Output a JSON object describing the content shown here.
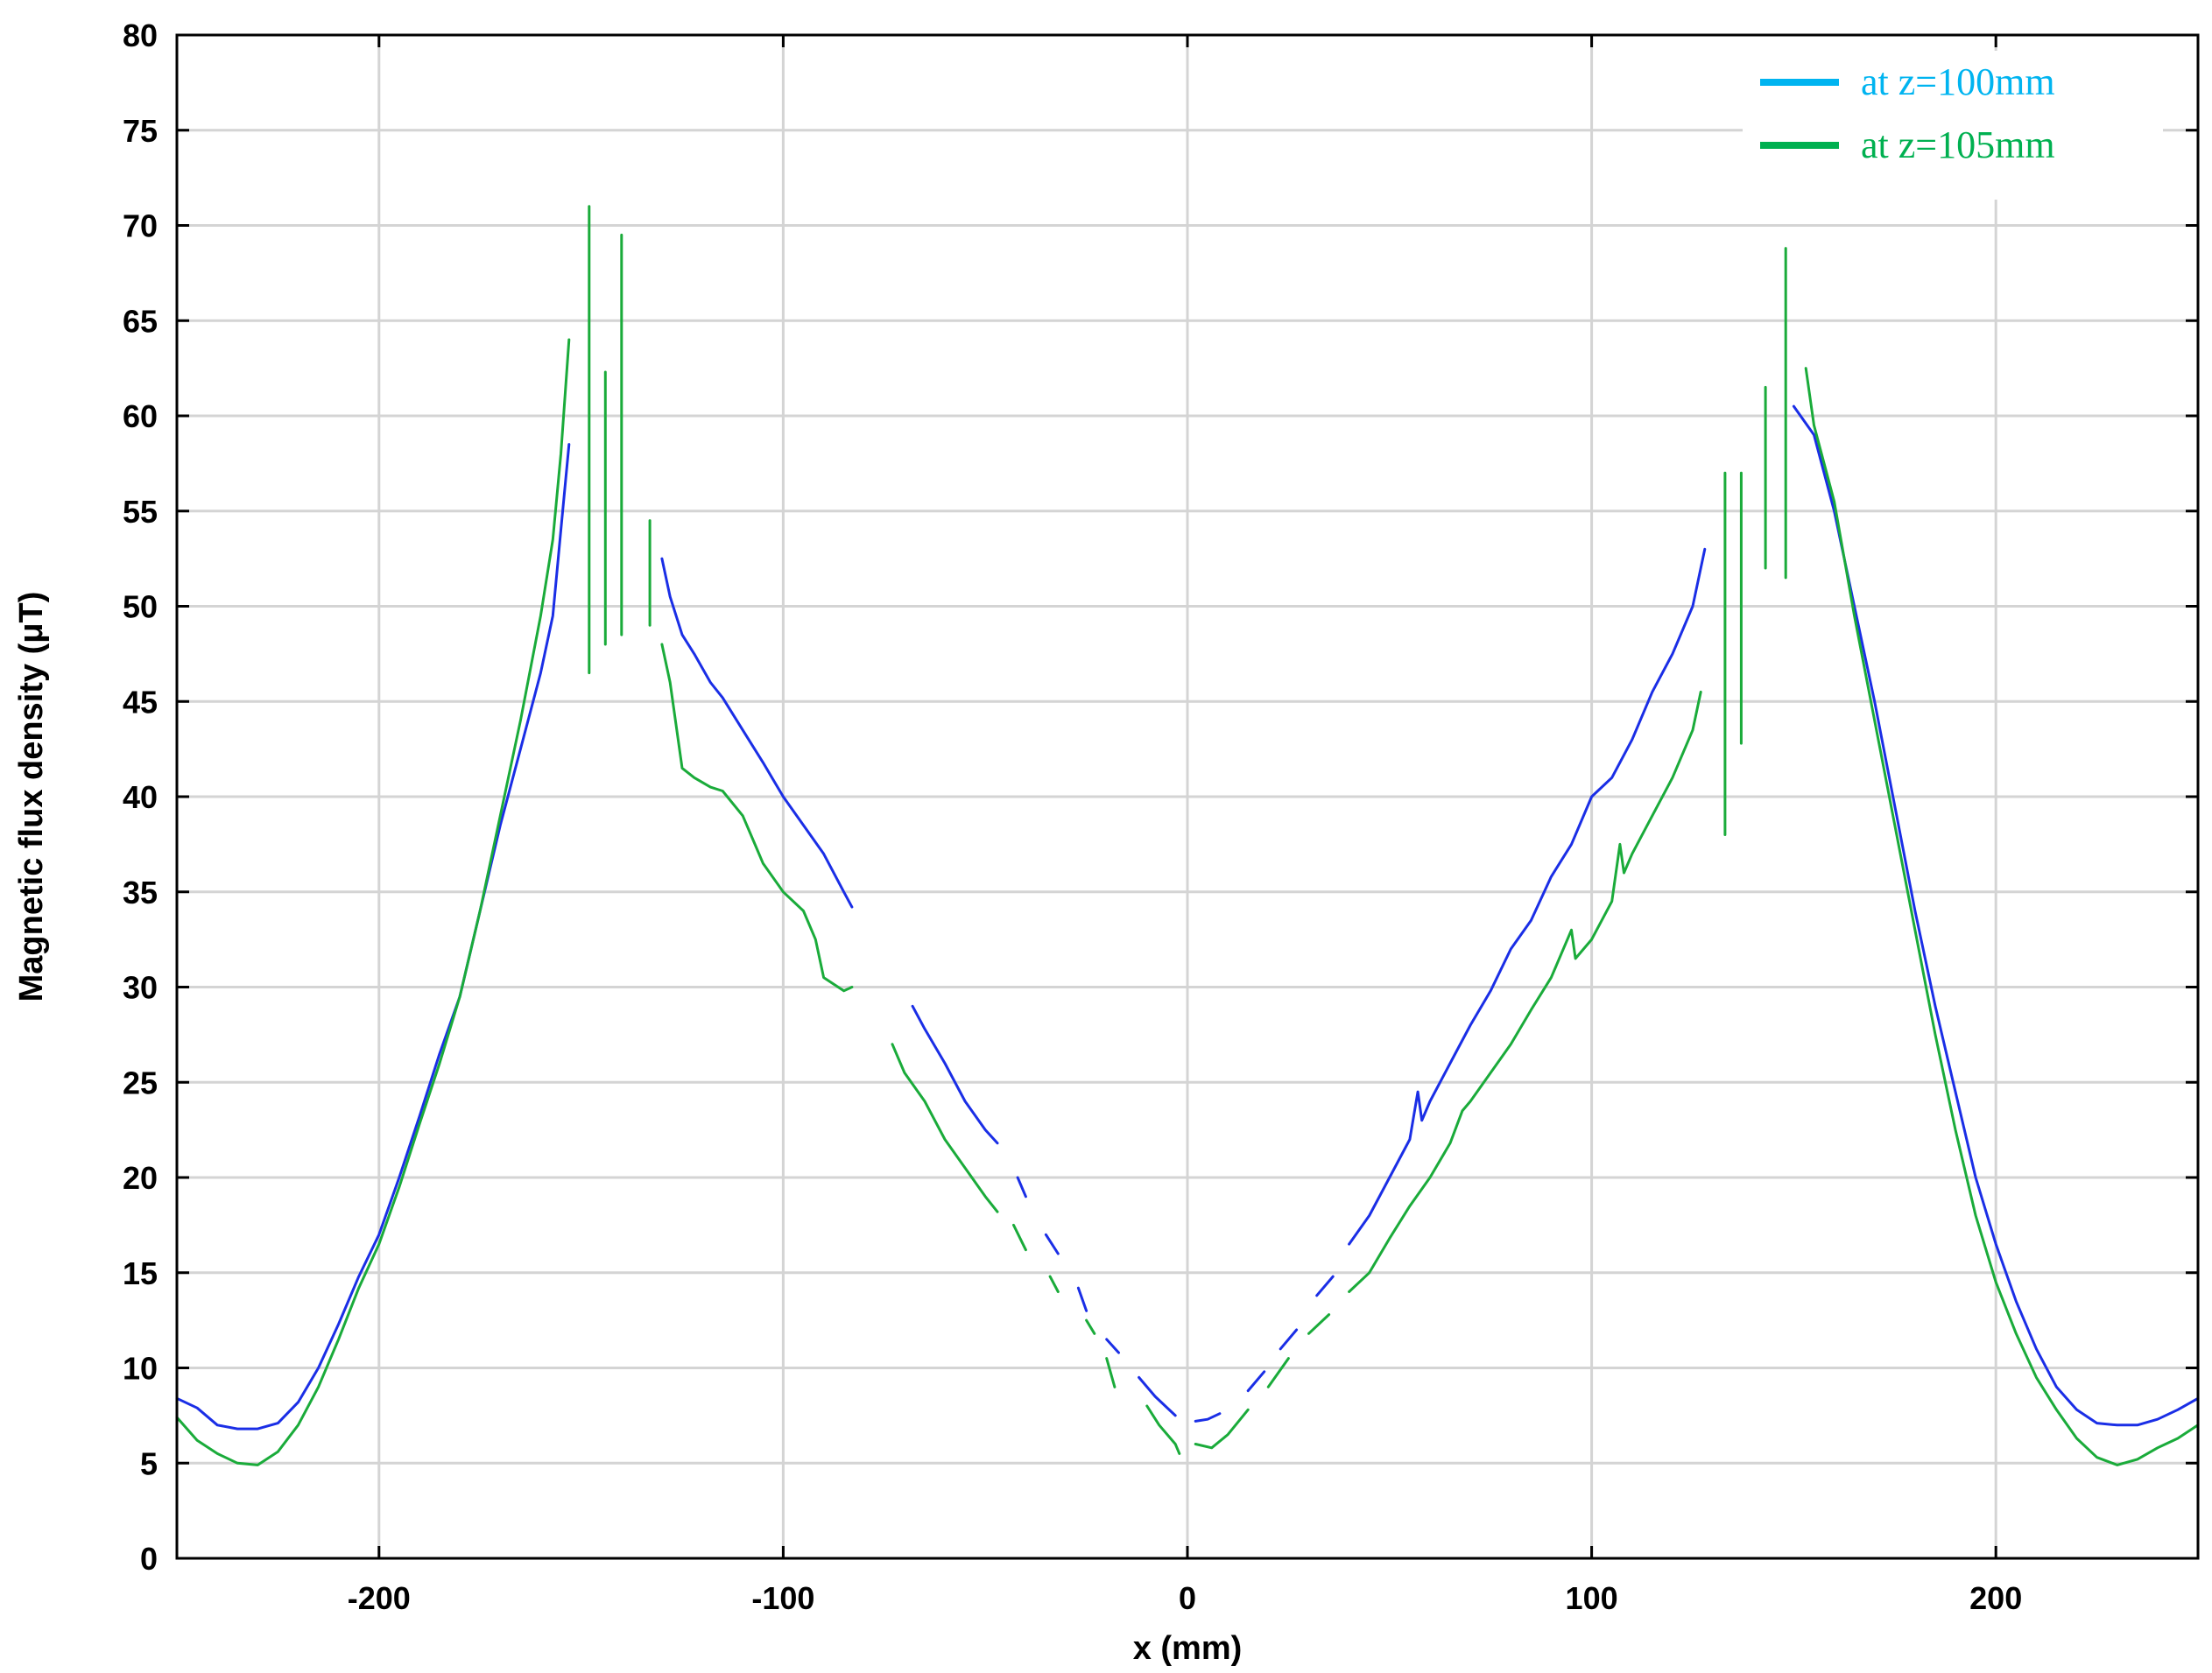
{
  "chart_data": {
    "type": "line",
    "title": "",
    "xlabel": "x (mm)",
    "ylabel": "Magnetic flux density (μT)",
    "xlim": [
      -250,
      250
    ],
    "ylim": [
      0,
      80
    ],
    "xticks": [
      -200,
      -100,
      0,
      100,
      200
    ],
    "yticks": [
      0,
      5,
      10,
      15,
      20,
      25,
      30,
      35,
      40,
      45,
      50,
      55,
      60,
      65,
      70,
      75,
      80
    ],
    "grid": true,
    "legend_position": "top-right",
    "series": [
      {
        "name": "at z=100mm",
        "color": "#1a2ee6",
        "legend_color": "#00b4f0",
        "points": [
          [
            -250,
            8.4
          ],
          [
            -245,
            7.9
          ],
          [
            -240,
            7.0
          ],
          [
            -235,
            6.8
          ],
          [
            -230,
            6.8
          ],
          [
            -225,
            7.1
          ],
          [
            -220,
            8.2
          ],
          [
            -215,
            10.0
          ],
          [
            -210,
            12.3
          ],
          [
            -205,
            14.8
          ],
          [
            -200,
            17.0
          ],
          [
            -195,
            20.0
          ],
          [
            -190,
            23.2
          ],
          [
            -185,
            26.5
          ],
          [
            -180,
            29.5
          ],
          [
            -175,
            34.0
          ],
          [
            -170,
            38.5
          ],
          [
            -165,
            42.5
          ],
          [
            -160,
            46.5
          ],
          [
            -157,
            49.5
          ],
          [
            -155,
            54.0
          ],
          [
            -153,
            58.5
          ],
          null,
          [
            -130,
            52.5
          ],
          [
            -128,
            50.5
          ],
          [
            -125,
            48.5
          ],
          [
            -122,
            47.5
          ],
          [
            -118,
            46.0
          ],
          [
            -115,
            45.2
          ],
          [
            -110,
            43.5
          ],
          [
            -105,
            41.8
          ],
          [
            -100,
            40.0
          ],
          [
            -95,
            38.5
          ],
          [
            -90,
            37.0
          ],
          [
            -85,
            35.0
          ],
          [
            -83,
            34.2
          ],
          null,
          [
            -68,
            29.0
          ],
          [
            -65,
            27.8
          ],
          [
            -60,
            26.0
          ],
          [
            -55,
            24.0
          ],
          [
            -50,
            22.5
          ],
          [
            -47,
            21.8
          ],
          null,
          [
            -42,
            20.0
          ],
          [
            -40,
            19.0
          ],
          null,
          [
            -35,
            17.0
          ],
          [
            -32,
            16.0
          ],
          null,
          [
            -27,
            14.2
          ],
          [
            -25,
            13.0
          ],
          null,
          [
            -20,
            11.5
          ],
          [
            -17,
            10.8
          ],
          null,
          [
            -12,
            9.5
          ],
          [
            -8,
            8.5
          ],
          [
            -3,
            7.5
          ],
          null,
          [
            2,
            7.2
          ],
          [
            5,
            7.3
          ],
          [
            8,
            7.6
          ],
          null,
          [
            15,
            8.8
          ],
          [
            19,
            9.8
          ],
          null,
          [
            23,
            11.0
          ],
          [
            27,
            12.0
          ],
          null,
          [
            32,
            13.8
          ],
          [
            36,
            14.8
          ],
          null,
          [
            40,
            16.5
          ],
          [
            45,
            18.0
          ],
          [
            50,
            20.0
          ],
          [
            55,
            22.0
          ],
          [
            57,
            24.5
          ],
          [
            58,
            23.0
          ],
          [
            60,
            24.0
          ],
          [
            65,
            26.0
          ],
          [
            70,
            28.0
          ],
          [
            75,
            29.8
          ],
          [
            80,
            32.0
          ],
          [
            85,
            33.5
          ],
          [
            90,
            35.8
          ],
          [
            95,
            37.5
          ],
          [
            100,
            40.0
          ],
          [
            105,
            41.0
          ],
          [
            110,
            43.0
          ],
          [
            115,
            45.5
          ],
          [
            120,
            47.5
          ],
          [
            125,
            50.0
          ],
          [
            128,
            53.0
          ],
          null,
          [
            150,
            60.5
          ],
          [
            155,
            59.0
          ],
          [
            160,
            55.0
          ],
          [
            165,
            50.0
          ],
          [
            170,
            45.0
          ],
          [
            175,
            39.5
          ],
          [
            180,
            34.0
          ],
          [
            185,
            29.0
          ],
          [
            190,
            24.5
          ],
          [
            195,
            20.0
          ],
          [
            200,
            16.5
          ],
          [
            205,
            13.5
          ],
          [
            210,
            11.0
          ],
          [
            215,
            9.0
          ],
          [
            220,
            7.8
          ],
          [
            225,
            7.1
          ],
          [
            230,
            7.0
          ],
          [
            235,
            7.0
          ],
          [
            240,
            7.3
          ],
          [
            245,
            7.8
          ],
          [
            250,
            8.4
          ]
        ]
      },
      {
        "name": "at z=105mm",
        "color": "#1aab3a",
        "legend_color": "#00b050",
        "points": [
          [
            -250,
            7.4
          ],
          [
            -245,
            6.2
          ],
          [
            -240,
            5.5
          ],
          [
            -235,
            5.0
          ],
          [
            -230,
            4.9
          ],
          [
            -225,
            5.6
          ],
          [
            -220,
            7.0
          ],
          [
            -215,
            9.0
          ],
          [
            -210,
            11.5
          ],
          [
            -205,
            14.2
          ],
          [
            -200,
            16.5
          ],
          [
            -195,
            19.5
          ],
          [
            -190,
            22.8
          ],
          [
            -185,
            26.0
          ],
          [
            -180,
            29.5
          ],
          [
            -175,
            34.0
          ],
          [
            -170,
            39.0
          ],
          [
            -165,
            44.0
          ],
          [
            -160,
            49.5
          ],
          [
            -157,
            53.5
          ],
          [
            -155,
            58.0
          ],
          [
            -153,
            64.0
          ],
          null,
          [
            -148,
            46.5
          ],
          [
            -148,
            71.0
          ],
          null,
          [
            -144,
            48.0
          ],
          [
            -144,
            62.3
          ],
          null,
          [
            -140,
            48.5
          ],
          [
            -140,
            69.5
          ],
          null,
          [
            -133,
            49.0
          ],
          [
            -133,
            54.5
          ],
          null,
          [
            -130,
            48.0
          ],
          [
            -128,
            46.0
          ],
          [
            -125,
            41.5
          ],
          [
            -122,
            41.0
          ],
          [
            -118,
            40.5
          ],
          [
            -115,
            40.3
          ],
          [
            -110,
            39.0
          ],
          [
            -107,
            37.5
          ],
          [
            -105,
            36.5
          ],
          [
            -100,
            35.0
          ],
          [
            -95,
            34.0
          ],
          [
            -92,
            32.5
          ],
          [
            -90,
            30.5
          ],
          [
            -85,
            29.8
          ],
          [
            -83,
            30.0
          ],
          null,
          [
            -73,
            27.0
          ],
          [
            -70,
            25.5
          ],
          [
            -65,
            24.0
          ],
          [
            -60,
            22.0
          ],
          [
            -55,
            20.5
          ],
          [
            -50,
            19.0
          ],
          [
            -47,
            18.2
          ],
          null,
          [
            -43,
            17.5
          ],
          [
            -40,
            16.2
          ],
          null,
          [
            -34,
            14.8
          ],
          [
            -32,
            14.0
          ],
          null,
          [
            -25,
            12.5
          ],
          [
            -23,
            11.8
          ],
          null,
          [
            -20,
            10.5
          ],
          [
            -18,
            9.0
          ],
          null,
          [
            -10,
            8.0
          ],
          [
            -7,
            7.0
          ],
          [
            -3,
            6.0
          ],
          [
            -2,
            5.5
          ],
          null,
          [
            2,
            6.0
          ],
          [
            6,
            5.8
          ],
          [
            10,
            6.5
          ],
          [
            15,
            7.8
          ],
          null,
          [
            20,
            9.0
          ],
          [
            25,
            10.5
          ],
          null,
          [
            30,
            11.8
          ],
          [
            35,
            12.8
          ],
          null,
          [
            40,
            14.0
          ],
          [
            45,
            15.0
          ],
          [
            50,
            16.8
          ],
          [
            55,
            18.5
          ],
          [
            60,
            20.0
          ],
          [
            65,
            21.8
          ],
          [
            68,
            23.5
          ],
          [
            70,
            24.0
          ],
          [
            75,
            25.5
          ],
          [
            80,
            27.0
          ],
          [
            85,
            28.8
          ],
          [
            90,
            30.5
          ],
          [
            95,
            33.0
          ],
          [
            96,
            31.5
          ],
          [
            100,
            32.5
          ],
          [
            105,
            34.5
          ],
          [
            107,
            37.5
          ],
          [
            108,
            36.0
          ],
          [
            110,
            37.0
          ],
          [
            115,
            39.0
          ],
          [
            120,
            41.0
          ],
          [
            125,
            43.5
          ],
          [
            127,
            45.5
          ],
          null,
          [
            133,
            38.0
          ],
          [
            133,
            57.0
          ],
          null,
          [
            137,
            42.8
          ],
          [
            137,
            57.0
          ],
          null,
          [
            143,
            52.0
          ],
          [
            143,
            61.5
          ],
          null,
          [
            148,
            51.5
          ],
          [
            148,
            68.8
          ],
          null,
          [
            153,
            62.5
          ],
          [
            155,
            59.5
          ],
          [
            160,
            55.5
          ],
          [
            165,
            49.5
          ],
          [
            170,
            44.0
          ],
          [
            175,
            38.5
          ],
          [
            180,
            33.0
          ],
          [
            185,
            27.5
          ],
          [
            190,
            22.5
          ],
          [
            195,
            18.0
          ],
          [
            200,
            14.5
          ],
          [
            205,
            11.8
          ],
          [
            210,
            9.5
          ],
          [
            215,
            7.8
          ],
          [
            220,
            6.3
          ],
          [
            225,
            5.3
          ],
          [
            230,
            4.9
          ],
          [
            235,
            5.2
          ],
          [
            240,
            5.8
          ],
          [
            245,
            6.3
          ],
          [
            250,
            7.0
          ]
        ]
      }
    ]
  }
}
